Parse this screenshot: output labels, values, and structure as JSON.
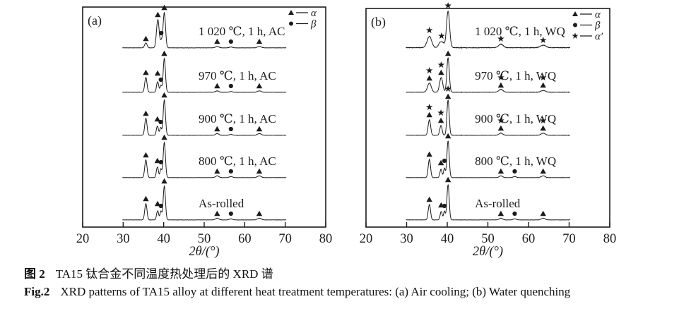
{
  "colors": {
    "ink": "#1c1c1c",
    "background": "#ffffff"
  },
  "caption_cn": {
    "prefix": "图 2",
    "text": "TA15 钛合金不同温度热处理后的 XRD 谱"
  },
  "caption_en": {
    "prefix": "Fig.2",
    "text": "XRD patterns of TA15 alloy at different heat treatment temperatures: (a) Air cooling; (b) Water quenching"
  },
  "chart_data": [
    {
      "type": "line",
      "panel_tag": "(a)",
      "title": "XRD patterns, air cooling",
      "xlabel": "2θ/(°)",
      "ylabel": "",
      "xlim": [
        20,
        80
      ],
      "x_ticks": [
        20,
        30,
        40,
        50,
        60,
        70,
        80
      ],
      "x_range_shown": [
        29.8,
        70.3
      ],
      "grid": false,
      "legend_position": "top-right",
      "legend": [
        {
          "symbol": "triangle",
          "phase": "α"
        },
        {
          "symbol": "circle",
          "phase": "β"
        }
      ],
      "traces": [
        {
          "label": "1 020 ℃, 1 h, AC",
          "noise": 0.35,
          "peaks": [
            [
              35.6,
              7,
              0.3
            ],
            [
              38.55,
              40,
              0.32
            ],
            [
              39.4,
              9,
              0.25
            ],
            [
              40.15,
              50,
              0.3
            ],
            [
              53.2,
              2,
              0.4
            ],
            [
              56.6,
              1.2,
              0.4
            ],
            [
              63.6,
              2,
              0.45
            ]
          ],
          "markers": [
            [
              "triangle",
              35.6,
              13
            ],
            [
              "triangle",
              38.55,
              47
            ],
            [
              "circle",
              39.4,
              21
            ],
            [
              "triangle",
              40.15,
              57
            ],
            [
              "triangle",
              53.2,
              9
            ],
            [
              "circle",
              56.6,
              9
            ],
            [
              "triangle",
              63.6,
              9
            ]
          ]
        },
        {
          "label": "970 ℃, 1 h, AC",
          "noise": 0.35,
          "peaks": [
            [
              35.6,
              21,
              0.28
            ],
            [
              38.5,
              15,
              0.26
            ],
            [
              39.3,
              9,
              0.22
            ],
            [
              40.15,
              48,
              0.28
            ],
            [
              53.2,
              2,
              0.4
            ],
            [
              56.6,
              1,
              0.4
            ],
            [
              63.6,
              2,
              0.45
            ]
          ],
          "markers": [
            [
              "triangle",
              35.6,
              28
            ],
            [
              "triangle",
              38.5,
              27
            ],
            [
              "circle",
              39.3,
              18
            ],
            [
              "triangle",
              40.15,
              55
            ],
            [
              "triangle",
              53.2,
              9
            ],
            [
              "circle",
              56.6,
              9
            ],
            [
              "triangle",
              63.6,
              9
            ]
          ]
        },
        {
          "label": "900 ℃, 1 h, AC",
          "noise": 0.35,
          "peaks": [
            [
              35.6,
              24,
              0.28
            ],
            [
              38.45,
              13,
              0.25
            ],
            [
              39.25,
              11,
              0.22
            ],
            [
              40.15,
              50,
              0.28
            ],
            [
              53.2,
              2.5,
              0.4
            ],
            [
              56.6,
              1.2,
              0.4
            ],
            [
              63.6,
              2.5,
              0.45
            ]
          ],
          "markers": [
            [
              "triangle",
              35.6,
              31
            ],
            [
              "triangle",
              38.45,
              23
            ],
            [
              "circle",
              39.25,
              19
            ],
            [
              "triangle",
              40.15,
              57
            ],
            [
              "triangle",
              53.2,
              9
            ],
            [
              "circle",
              56.6,
              9
            ],
            [
              "triangle",
              63.6,
              9
            ]
          ]
        },
        {
          "label": "800 ℃, 1 h, AC",
          "noise": 0.35,
          "peaks": [
            [
              35.6,
              25,
              0.28
            ],
            [
              38.45,
              15,
              0.25
            ],
            [
              39.3,
              12,
              0.22
            ],
            [
              40.15,
              50,
              0.28
            ],
            [
              53.2,
              2.5,
              0.4
            ],
            [
              56.6,
              1.5,
              0.4
            ],
            [
              63.6,
              2.5,
              0.45
            ]
          ],
          "markers": [
            [
              "triangle",
              35.6,
              32
            ],
            [
              "triangle",
              38.45,
              24
            ],
            [
              "circle",
              39.3,
              22
            ],
            [
              "triangle",
              40.15,
              57
            ],
            [
              "triangle",
              53.2,
              9
            ],
            [
              "circle",
              56.6,
              9
            ],
            [
              "triangle",
              63.6,
              9
            ]
          ]
        },
        {
          "label": "As-rolled",
          "noise": 0.35,
          "peaks": [
            [
              35.6,
              23,
              0.28
            ],
            [
              38.5,
              13,
              0.25
            ],
            [
              39.3,
              12,
              0.22
            ],
            [
              40.15,
              48,
              0.28
            ],
            [
              53.2,
              2.5,
              0.4
            ],
            [
              56.6,
              1.5,
              0.4
            ],
            [
              63.6,
              2.5,
              0.45
            ]
          ],
          "markers": [
            [
              "triangle",
              35.6,
              30
            ],
            [
              "triangle",
              38.5,
              23
            ],
            [
              "circle",
              39.3,
              20
            ],
            [
              "triangle",
              40.15,
              55
            ],
            [
              "triangle",
              53.2,
              9
            ],
            [
              "circle",
              56.6,
              9
            ],
            [
              "triangle",
              63.6,
              9
            ]
          ]
        }
      ]
    },
    {
      "type": "line",
      "panel_tag": "(b)",
      "title": "XRD patterns, water quenching",
      "xlabel": "2θ/(°)",
      "ylabel": "",
      "xlim": [
        20,
        80
      ],
      "x_ticks": [
        20,
        30,
        40,
        50,
        60,
        70,
        80
      ],
      "x_range_shown": [
        29.8,
        70.3
      ],
      "grid": false,
      "legend_position": "top-right",
      "legend": [
        {
          "symbol": "triangle",
          "phase": "α"
        },
        {
          "symbol": "circle",
          "phase": "β"
        },
        {
          "symbol": "star",
          "phase": "α′"
        }
      ],
      "traces": [
        {
          "label": "1 020 ℃, 1 h, WQ",
          "noise": 0.8,
          "peaks": [
            [
              35.6,
              16,
              0.55
            ],
            [
              38.25,
              7,
              0.4
            ],
            [
              38.95,
              6,
              0.35
            ],
            [
              40.2,
              52,
              0.38
            ],
            [
              53.2,
              5,
              0.55
            ],
            [
              63.6,
              3.5,
              0.65
            ]
          ],
          "markers": [
            [
              "star",
              35.6,
              25
            ],
            [
              "star",
              38.6,
              17
            ],
            [
              "star",
              40.2,
              60
            ],
            [
              "star",
              53.2,
              13
            ],
            [
              "star",
              63.6,
              11
            ]
          ]
        },
        {
          "label": "970 ℃, 1 h, WQ",
          "noise": 0.5,
          "peaks": [
            [
              35.6,
              13,
              0.45
            ],
            [
              38.5,
              21,
              0.38
            ],
            [
              40.2,
              49,
              0.3
            ],
            [
              53.2,
              4,
              0.5
            ],
            [
              63.6,
              2.5,
              0.55
            ]
          ],
          "markers": [
            [
              "triangle",
              35.6,
              20
            ],
            [
              "star",
              35.6,
              31
            ],
            [
              "triangle",
              38.5,
              28
            ],
            [
              "star",
              38.5,
              39
            ],
            [
              "triangle",
              40.2,
              55
            ],
            [
              "triangle",
              53.2,
              10
            ],
            [
              "star",
              53.2,
              21
            ],
            [
              "triangle",
              63.6,
              10
            ],
            [
              "star",
              63.6,
              21
            ]
          ]
        },
        {
          "label": "900 ℃, 1 h, WQ",
          "noise": 0.4,
          "peaks": [
            [
              35.6,
              22,
              0.3
            ],
            [
              38.45,
              14,
              0.28
            ],
            [
              40.2,
              50,
              0.28
            ],
            [
              53.2,
              3,
              0.45
            ],
            [
              63.6,
              3,
              0.5
            ]
          ],
          "markers": [
            [
              "triangle",
              35.6,
              29
            ],
            [
              "star",
              35.6,
              40
            ],
            [
              "triangle",
              38.45,
              21
            ],
            [
              "star",
              38.45,
              32
            ],
            [
              "triangle",
              40.2,
              55
            ],
            [
              "star",
              40.2,
              66
            ],
            [
              "triangle",
              53.2,
              10
            ],
            [
              "star",
              53.2,
              21
            ],
            [
              "triangle",
              63.6,
              10
            ],
            [
              "star",
              63.6,
              21
            ]
          ]
        },
        {
          "label": "800 ℃, 1 h, WQ",
          "noise": 0.35,
          "peaks": [
            [
              35.6,
              26,
              0.28
            ],
            [
              38.45,
              12,
              0.25
            ],
            [
              39.3,
              13,
              0.22
            ],
            [
              40.2,
              52,
              0.28
            ],
            [
              53.2,
              2.5,
              0.4
            ],
            [
              56.6,
              1.5,
              0.4
            ],
            [
              63.6,
              2.5,
              0.45
            ]
          ],
          "markers": [
            [
              "triangle",
              35.6,
              33
            ],
            [
              "triangle",
              38.45,
              21
            ],
            [
              "circle",
              39.3,
              24
            ],
            [
              "triangle",
              40.2,
              59
            ],
            [
              "triangle",
              53.2,
              9
            ],
            [
              "circle",
              56.6,
              9
            ],
            [
              "triangle",
              63.6,
              9
            ]
          ]
        },
        {
          "label": "As-rolled",
          "noise": 0.35,
          "peaks": [
            [
              35.6,
              22,
              0.28
            ],
            [
              38.5,
              12,
              0.25
            ],
            [
              39.3,
              12,
              0.22
            ],
            [
              40.2,
              50,
              0.28
            ],
            [
              53.2,
              2.5,
              0.4
            ],
            [
              56.6,
              1.5,
              0.4
            ],
            [
              63.6,
              2.5,
              0.45
            ]
          ],
          "markers": [
            [
              "triangle",
              35.6,
              29
            ],
            [
              "triangle",
              38.5,
              21
            ],
            [
              "circle",
              39.3,
              20
            ],
            [
              "triangle",
              40.2,
              57
            ],
            [
              "triangle",
              53.2,
              9
            ],
            [
              "circle",
              56.6,
              9
            ],
            [
              "triangle",
              63.6,
              9
            ]
          ]
        }
      ]
    }
  ]
}
